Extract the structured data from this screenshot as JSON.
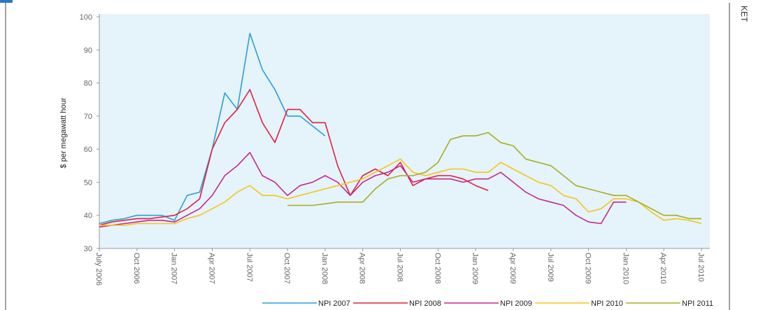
{
  "chart_data": {
    "type": "line",
    "y_label": "$ per megawatt hour",
    "annotations": [
      "KET"
    ],
    "categories": [
      "July 2006",
      null,
      null,
      "Oct 2006",
      null,
      null,
      "Jan 2007",
      null,
      null,
      "Apr 2007",
      null,
      null,
      "Jul 2007",
      null,
      null,
      "Oct 2007",
      null,
      null,
      "Jan 2008",
      null,
      null,
      "Apr 2008",
      null,
      null,
      "Jul 2008",
      null,
      null,
      "Oct 2008",
      null,
      null,
      "Jan 2009",
      null,
      null,
      "Apr 2009",
      null,
      null,
      "Jul 2009",
      null,
      null,
      "Oct 2009",
      null,
      null,
      "Jan 2010",
      null,
      null,
      "Apr 2010",
      null,
      null,
      "Jul 2010"
    ],
    "ylim": [
      30,
      100
    ],
    "yticks": [
      30,
      40,
      50,
      60,
      70,
      80,
      90,
      100
    ],
    "grid": false,
    "legend": "bottom",
    "background": "#e5f3fb",
    "series": [
      {
        "name": "NPI 2007",
        "color": "#2b9ed8",
        "values": [
          37.5,
          38.5,
          39,
          40,
          40,
          40,
          38.5,
          46,
          47,
          60,
          77,
          72,
          95,
          84,
          78,
          70,
          70,
          67,
          64,
          null,
          null,
          null,
          null,
          null,
          null,
          null,
          null,
          null,
          null,
          null,
          null,
          null,
          null,
          null,
          null,
          null,
          null,
          null,
          null,
          null,
          null,
          null,
          null,
          null,
          null,
          null,
          null,
          null,
          null
        ]
      },
      {
        "name": "NPI 2008",
        "color": "#e0203c",
        "values": [
          37,
          38,
          38.5,
          39,
          39,
          39.5,
          40,
          42,
          45,
          60,
          68,
          72,
          78,
          68,
          62,
          72,
          72,
          68,
          68,
          55,
          46,
          52,
          54,
          52,
          56,
          49,
          51,
          52,
          52,
          51,
          49,
          47.5,
          null,
          null,
          null,
          null,
          null,
          null,
          null,
          null,
          null,
          null,
          null,
          null,
          null,
          null,
          null,
          null,
          null
        ]
      },
      {
        "name": "NPI 2009",
        "color": "#c42a8a",
        "values": [
          36.5,
          37,
          37.5,
          38,
          38.5,
          38.5,
          38,
          40,
          42,
          46,
          52,
          55,
          59,
          52,
          50,
          46,
          49,
          50,
          52,
          50,
          46,
          50,
          52,
          53,
          55,
          50,
          51,
          51,
          51,
          50,
          51,
          51,
          53,
          50,
          47,
          45,
          44,
          43,
          40,
          38,
          37.5,
          44,
          44,
          null,
          null,
          null,
          null,
          null,
          null
        ]
      },
      {
        "name": "NPI 2010",
        "color": "#f5c518",
        "values": [
          37,
          37,
          37,
          37.5,
          37.5,
          37.5,
          37.5,
          39,
          40,
          42,
          44,
          47,
          49,
          46,
          46,
          45,
          46,
          47,
          48,
          49,
          50,
          51,
          53,
          55,
          57,
          53,
          52,
          53,
          54,
          54,
          53,
          53,
          56,
          54,
          52,
          50,
          49,
          46,
          45,
          41,
          42,
          45,
          45,
          44,
          41,
          38.5,
          39,
          38.5,
          37.5
        ]
      },
      {
        "name": "NPI 2011",
        "color": "#a7ad22",
        "values": [
          null,
          null,
          null,
          null,
          null,
          null,
          null,
          null,
          null,
          null,
          null,
          null,
          null,
          null,
          null,
          43,
          43,
          43,
          43.5,
          44,
          44,
          44,
          48,
          51,
          52,
          52,
          53,
          56,
          63,
          64,
          64,
          65,
          62,
          61,
          57,
          56,
          55,
          52,
          49,
          48,
          47,
          46,
          46,
          44,
          42,
          40,
          40,
          39,
          39
        ]
      }
    ]
  }
}
